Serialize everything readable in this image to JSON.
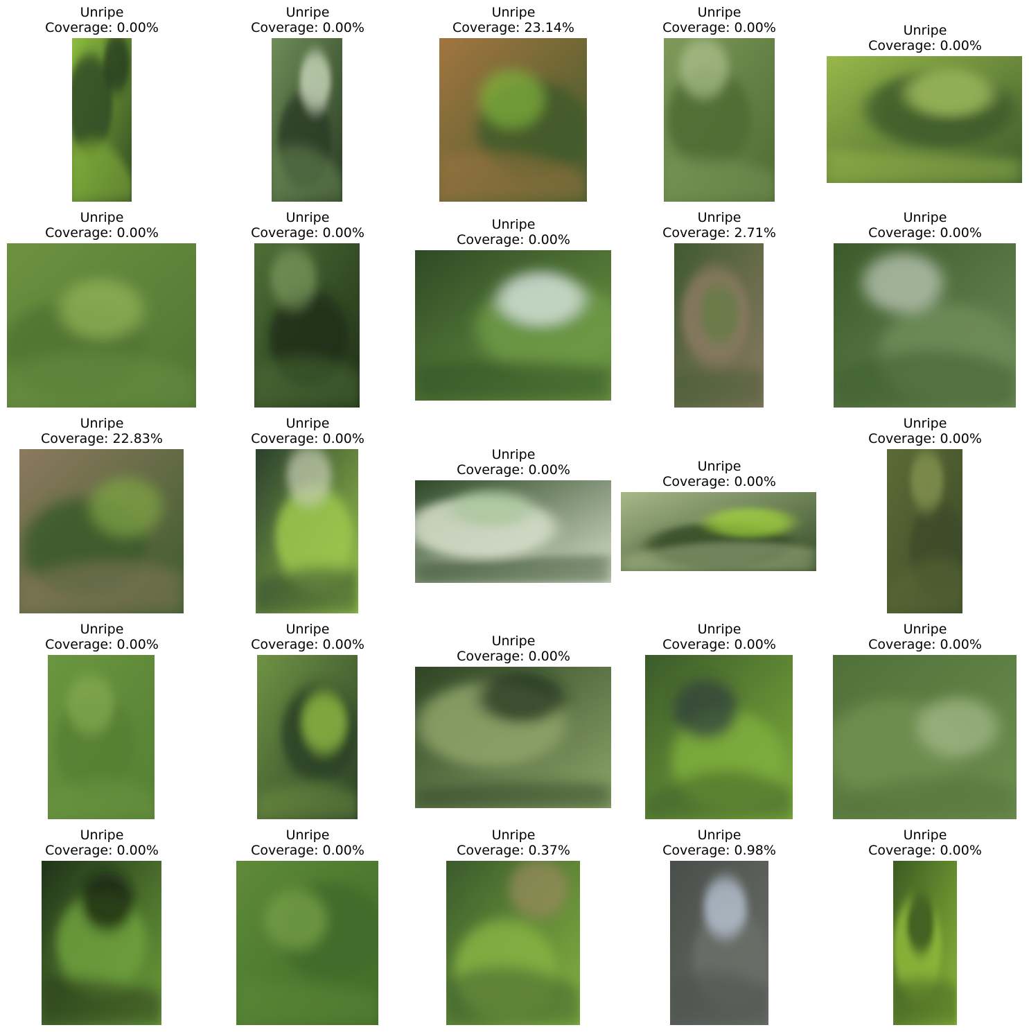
{
  "figure": {
    "panels": [
      {
        "label": "Unripe",
        "coverage": "Coverage: 0.00%",
        "palette": [
          "#8dbd3e",
          "#2f4a23",
          "#1f301a"
        ]
      },
      {
        "label": "Unripe",
        "coverage": "Coverage: 0.00%",
        "palette": [
          "#6e8c58",
          "#2a3d24",
          "#d8e6cc"
        ]
      },
      {
        "label": "Unripe",
        "coverage": "Coverage: 23.14%",
        "palette": [
          "#a2753f",
          "#3f5a2c",
          "#7fb23a"
        ]
      },
      {
        "label": "Unripe",
        "coverage": "Coverage: 0.00%",
        "palette": [
          "#7e9a5a",
          "#4d6b33",
          "#aec28f"
        ]
      },
      {
        "label": "Unripe",
        "coverage": "Coverage: 0.00%",
        "palette": [
          "#97b84a",
          "#3d5a2c",
          "#b2cf66"
        ]
      },
      {
        "label": "Unripe",
        "coverage": "Coverage: 0.00%",
        "palette": [
          "#6c9240",
          "#4f7433",
          "#97b65a"
        ]
      },
      {
        "label": "Unripe",
        "coverage": "Coverage: 0.00%",
        "palette": [
          "#4e6e36",
          "#1f3018",
          "#7c9a5e"
        ]
      },
      {
        "label": "Unripe",
        "coverage": "Coverage: 0.00%",
        "palette": [
          "#2e4a25",
          "#6f9a45",
          "#e6eef5"
        ]
      },
      {
        "label": "Unripe",
        "coverage": "Coverage: 2.71%",
        "palette": [
          "#3f5a2f",
          "#8a7a62",
          "#5f7c45"
        ]
      },
      {
        "label": "Unripe",
        "coverage": "Coverage: 0.00%",
        "palette": [
          "#3a5a2a",
          "#6f8c58",
          "#c5cec0"
        ]
      },
      {
        "label": "Unripe",
        "coverage": "Coverage: 22.83%",
        "palette": [
          "#8c7a5e",
          "#3b5a2c",
          "#7fa544"
        ]
      },
      {
        "label": "Unripe",
        "coverage": "Coverage: 0.00%",
        "palette": [
          "#2b3f2e",
          "#9cc84d",
          "#c8cfb5"
        ]
      },
      {
        "label": "Unripe",
        "coverage": "Coverage: 0.00%",
        "palette": [
          "#2f4a28",
          "#d8e0cc",
          "#a8c59a"
        ]
      },
      {
        "label": "Unripe",
        "coverage": "Coverage: 0.00%",
        "palette": [
          "#a7b888",
          "#324a26",
          "#a5d83c"
        ]
      },
      {
        "label": "Unripe",
        "coverage": "Coverage: 0.00%",
        "palette": [
          "#5b6b36",
          "#3d4a28",
          "#8a9a55"
        ]
      },
      {
        "label": "Unripe",
        "coverage": "Coverage: 0.00%",
        "palette": [
          "#6b9640",
          "#557f33",
          "#86ab52"
        ]
      },
      {
        "label": "Unripe",
        "coverage": "Coverage: 0.00%",
        "palette": [
          "#6f9344",
          "#2a3f26",
          "#9fcf4a"
        ]
      },
      {
        "label": "Unripe",
        "coverage": "Coverage: 0.00%",
        "palette": [
          "#2e4424",
          "#8da56a",
          "#1e2e18"
        ]
      },
      {
        "label": "Unripe",
        "coverage": "Coverage: 0.00%",
        "palette": [
          "#3a5a2a",
          "#7fae3c",
          "#2c3b3a"
        ]
      },
      {
        "label": "Unripe",
        "coverage": "Coverage: 0.00%",
        "palette": [
          "#4f7038",
          "#6e8f50",
          "#a6bb8c"
        ]
      },
      {
        "label": "Unripe",
        "coverage": "Coverage: 0.00%",
        "palette": [
          "#1f3319",
          "#6fa03c",
          "#0f1a0d"
        ]
      },
      {
        "label": "Unripe",
        "coverage": "Coverage: 0.00%",
        "palette": [
          "#5e8a38",
          "#3f6a28",
          "#7aa34a"
        ]
      },
      {
        "label": "Unripe",
        "coverage": "Coverage: 0.37%",
        "palette": [
          "#3a5a2c",
          "#86b342",
          "#9a8a5e"
        ]
      },
      {
        "label": "Unripe",
        "coverage": "Coverage: 0.98%",
        "palette": [
          "#4a4e4a",
          "#6a6f68",
          "#c4d2e4"
        ]
      },
      {
        "label": "Unripe",
        "coverage": "Coverage: 0.00%",
        "palette": [
          "#3b5a22",
          "#8cb83a",
          "#2a3e1c"
        ]
      }
    ]
  }
}
